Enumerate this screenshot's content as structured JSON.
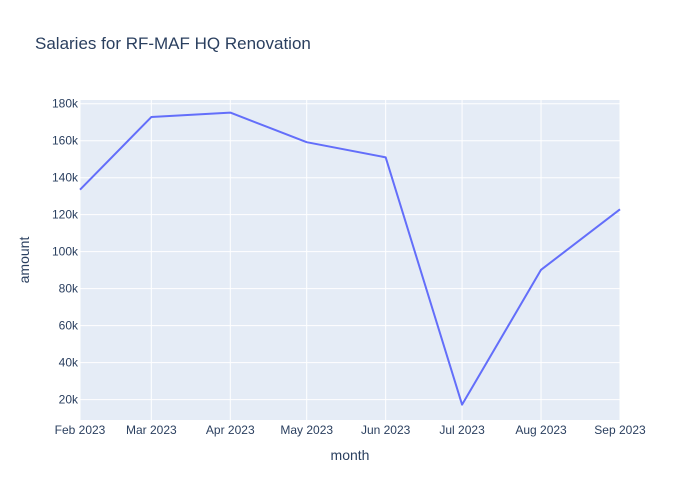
{
  "chart_data": {
    "type": "line",
    "title": "Salaries for RF-MAF HQ Renovation",
    "xlabel": "month",
    "ylabel": "amount",
    "categories": [
      "Feb 2023",
      "Mar 2023",
      "Apr 2023",
      "May 2023",
      "Jun 2023",
      "Jul 2023",
      "Aug 2023",
      "Sep 2023"
    ],
    "x": [
      "2023-02-01",
      "2023-03-01",
      "2023-04-01",
      "2023-05-01",
      "2023-06-01",
      "2023-07-01",
      "2023-08-01",
      "2023-09-01"
    ],
    "series": [
      {
        "values": [
          133500,
          172800,
          175200,
          159200,
          151000,
          17300,
          90200,
          122900
        ]
      }
    ],
    "ylim": [
      9000,
      182000
    ],
    "yticks": [
      20000,
      40000,
      60000,
      80000,
      100000,
      120000,
      140000,
      160000,
      180000
    ],
    "ytick_labels": [
      "20k",
      "40k",
      "60k",
      "80k",
      "100k",
      "120k",
      "140k",
      "160k",
      "180k"
    ],
    "grid": true,
    "colors": {
      "line": "#636efa",
      "plot_background": "#e5ecf6",
      "grid": "#ffffff",
      "text": "#2a3f5f"
    }
  }
}
